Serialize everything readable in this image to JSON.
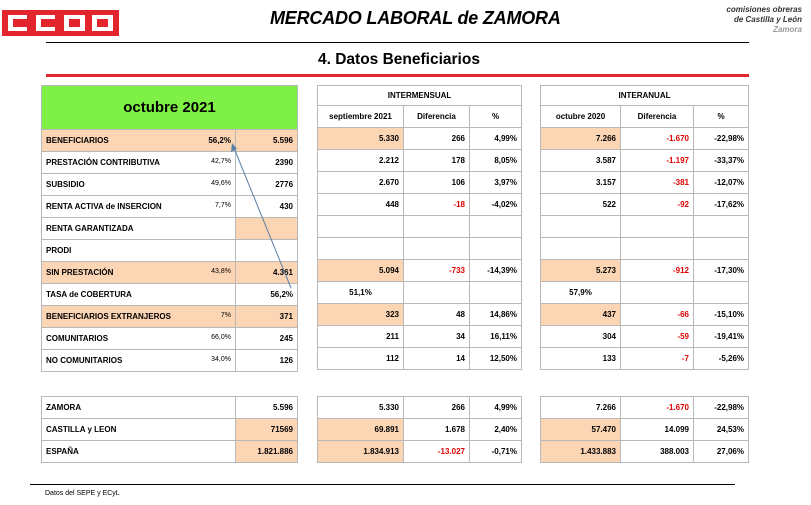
{
  "header": {
    "logo_text": "CCOO",
    "title": "MERCADO LABORAL de ZAMORA",
    "org_line1": "comisiones obreras",
    "org_line2": "de Castilla y León",
    "org_line3": "Zamora",
    "section": "4.  Datos Beneficiarios",
    "brand_red": "#e3262d"
  },
  "main": {
    "month": "octubre 2021",
    "rows": [
      {
        "label": "BENEFICIARIOS",
        "pct": "56,2%",
        "value": "5.596"
      },
      {
        "label": "PRESTACIÓN CONTRIBUTIVA",
        "pct": "42,7%",
        "value": "2390"
      },
      {
        "label": "SUBSIDIO",
        "pct": "49,6%",
        "value": "2776"
      },
      {
        "label": "RENTA ACTIVA de INSERCION",
        "pct": "7,7%",
        "value": "430"
      },
      {
        "label": "RENTA GARANTIZADA",
        "pct": "",
        "value": ""
      },
      {
        "label": "PRODI",
        "pct": "",
        "value": ""
      },
      {
        "label": "SIN PRESTACIÓN",
        "pct": "43,8%",
        "value": "4.361"
      },
      {
        "label": "TASA de COBERTURA",
        "pct": "",
        "value": "56,2%"
      },
      {
        "label": "BENEFICIARIOS EXTRANJEROS",
        "pct": "7%",
        "value": "371"
      },
      {
        "label": "COMUNITARIOS",
        "pct": "66,0%",
        "value": "245"
      },
      {
        "label": "NO COMUNITARIOS",
        "pct": "34,0%",
        "value": "126"
      }
    ]
  },
  "intermensual": {
    "title": "INTERMENSUAL",
    "headers": [
      "septiembre 2021",
      "Diferencia",
      "%"
    ],
    "rows": [
      [
        "5.330",
        "266",
        "4,99%"
      ],
      [
        "2.212",
        "178",
        "8,05%"
      ],
      [
        "2.670",
        "106",
        "3,97%"
      ],
      [
        "448",
        "-18",
        "-4,02%"
      ],
      [
        "",
        "",
        ""
      ],
      [
        "",
        "",
        ""
      ],
      [
        "5.094",
        "-733",
        "-14,39%"
      ],
      [
        "51,1%",
        "",
        ""
      ],
      [
        "323",
        "48",
        "14,86%"
      ],
      [
        "211",
        "34",
        "16,11%"
      ],
      [
        "112",
        "14",
        "12,50%"
      ]
    ]
  },
  "interanual": {
    "title": "INTERANUAL",
    "headers": [
      "octubre 2020",
      "Diferencia",
      "%"
    ],
    "rows": [
      [
        "7.266",
        "-1.670",
        "-22,98%"
      ],
      [
        "3.587",
        "-1.197",
        "-33,37%"
      ],
      [
        "3.157",
        "-381",
        "-12,07%"
      ],
      [
        "522",
        "-92",
        "-17,62%"
      ],
      [
        "",
        "",
        ""
      ],
      [
        "",
        "",
        ""
      ],
      [
        "5.273",
        "-912",
        "-17,30%"
      ],
      [
        "57,9%",
        "",
        ""
      ],
      [
        "437",
        "-66",
        "-15,10%"
      ],
      [
        "304",
        "-59",
        "-19,41%"
      ],
      [
        "133",
        "-7",
        "-5,26%"
      ]
    ]
  },
  "regions": {
    "rows": [
      {
        "label": "ZAMORA",
        "value": "5.596",
        "inter": [
          "5.330",
          "266",
          "4,99%"
        ],
        "anual": [
          "7.266",
          "-1.670",
          "-22,98%"
        ]
      },
      {
        "label": "CASTILLA y LEON",
        "value": "71569",
        "inter": [
          "69.891",
          "1.678",
          "2,40%"
        ],
        "anual": [
          "57.470",
          "14.099",
          "24,53%"
        ]
      },
      {
        "label": "ESPAÑA",
        "value": "1.821.886",
        "inter": [
          "1.834.913",
          "-13.027",
          "-0,71%"
        ],
        "anual": [
          "1.433.883",
          "388.003",
          "27,06%"
        ]
      }
    ]
  },
  "footer": {
    "source": "Datos del SEPE y ECyL"
  }
}
